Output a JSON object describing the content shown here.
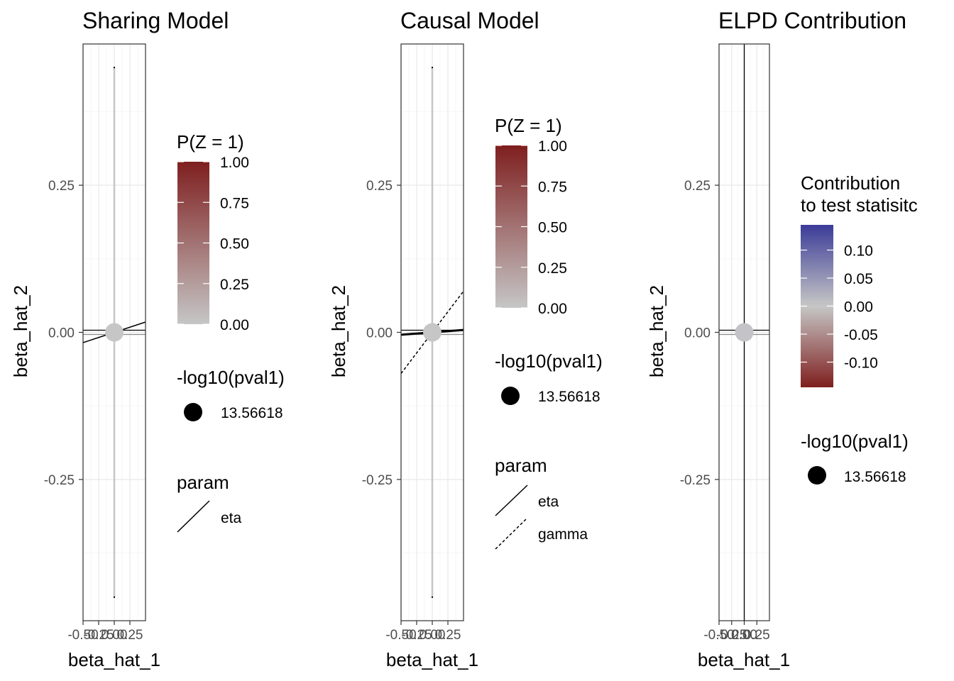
{
  "chart_data": [
    {
      "type": "scatter",
      "title": "Sharing Model",
      "xlabel": "beta_hat_1",
      "ylabel": "beta_hat_2",
      "xlim": [
        -0.5,
        0.5
      ],
      "ylim": [
        -0.49,
        0.49
      ],
      "x_ticks": [
        -0.5,
        -0.25,
        0.0,
        0.25
      ],
      "x_tick_labels": [
        "-0.50",
        "-0.25",
        "0.00",
        "0.25"
      ],
      "y_ticks": [
        0.25,
        0.0,
        -0.25
      ],
      "y_tick_labels": [
        "0.25",
        "0.00",
        "-0.25"
      ],
      "grid": true,
      "points": [
        {
          "x": 0.0,
          "y": 0.0,
          "z_prob": 0.0,
          "size_value": 13.56618
        }
      ],
      "error_bars": {
        "x_halfwidth": 0.5,
        "y_halfwidth": 0.45
      },
      "lines": [
        {
          "param": "eta",
          "intercept": 0.0,
          "slope": 0.035,
          "linetype": "solid"
        }
      ],
      "legends": {
        "color": {
          "title": "P(Z = 1)",
          "range": [
            0.0,
            1.0
          ],
          "low": "#c6c6c6",
          "high": "#7f1f1f",
          "ticks": [
            1.0,
            0.75,
            0.5,
            0.25,
            0.0
          ],
          "labels": [
            "1.00",
            "0.75",
            "0.50",
            "0.25",
            "0.00"
          ]
        },
        "size": {
          "title": "-log10(pval1)",
          "label": "13.56618"
        },
        "linetype": {
          "title": "param",
          "entries": [
            {
              "label": "eta",
              "linetype": "solid"
            }
          ]
        }
      }
    },
    {
      "type": "scatter",
      "title": "Causal Model",
      "xlabel": "beta_hat_1",
      "ylabel": "beta_hat_2",
      "xlim": [
        -0.5,
        0.5
      ],
      "ylim": [
        -0.49,
        0.49
      ],
      "x_ticks": [
        -0.5,
        -0.25,
        0.0,
        0.25
      ],
      "x_tick_labels": [
        "-0.50",
        "-0.25",
        "0.00",
        "0.25"
      ],
      "y_ticks": [
        0.25,
        0.0,
        -0.25
      ],
      "y_tick_labels": [
        "0.25",
        "0.00",
        "-0.25"
      ],
      "grid": true,
      "points": [
        {
          "x": 0.0,
          "y": 0.0,
          "z_prob": 0.0,
          "size_value": 13.56618
        }
      ],
      "error_bars": {
        "x_halfwidth": 0.5,
        "y_halfwidth": 0.45
      },
      "lines": [
        {
          "param": "eta",
          "intercept": 0.0,
          "slope": 0.008,
          "linetype": "solid"
        },
        {
          "param": "gamma",
          "intercept": 0.0,
          "slope": 0.14,
          "linetype": "dashed"
        }
      ],
      "legends": {
        "color": {
          "title": "P(Z = 1)",
          "range": [
            0.0,
            1.0
          ],
          "low": "#c6c6c6",
          "high": "#7f1f1f",
          "ticks": [
            1.0,
            0.75,
            0.5,
            0.25,
            0.0
          ],
          "labels": [
            "1.00",
            "0.75",
            "0.50",
            "0.25",
            "0.00"
          ]
        },
        "size": {
          "title": "-log10(pval1)",
          "label": "13.56618"
        },
        "linetype": {
          "title": "param",
          "entries": [
            {
              "label": "eta",
              "linetype": "solid"
            },
            {
              "label": "gamma",
              "linetype": "dashed"
            }
          ]
        }
      }
    },
    {
      "type": "scatter",
      "title": "ELPD Contribution",
      "xlabel": "beta_hat_1",
      "ylabel": "beta_hat_2",
      "xlim": [
        -0.5,
        0.5
      ],
      "ylim": [
        -0.49,
        0.49
      ],
      "x_ticks": [
        -0.5,
        -0.25,
        0.0,
        0.25
      ],
      "x_tick_labels": [
        "-0.50",
        "-0.25",
        "0.00",
        "0.25"
      ],
      "y_ticks": [
        0.25,
        0.0,
        -0.25
      ],
      "y_tick_labels": [
        "0.25",
        "0.00",
        "-0.25"
      ],
      "grid": true,
      "points": [
        {
          "x": 0.0,
          "y": 0.0,
          "contribution": 0.0,
          "size_value": 13.56618
        }
      ],
      "error_bars": {
        "x_halfwidth": 0.5,
        "y_halfwidth": 0.45
      },
      "lines": [],
      "legends": {
        "color": {
          "title": "Contribution to test statisitc",
          "title_lines": [
            "Contribution",
            "to test statisitc"
          ],
          "range": [
            -0.145,
            0.145
          ],
          "low": "#7f1f1f",
          "mid": "#c6c6c6",
          "high": "#3b3b98",
          "ticks": [
            0.1,
            0.05,
            0.0,
            -0.05,
            -0.1
          ],
          "labels": [
            "0.10",
            "0.05",
            "0.00",
            "-0.05",
            "-0.10"
          ]
        },
        "size": {
          "title": "-log10(pval1)",
          "label": "13.56618"
        }
      }
    }
  ]
}
